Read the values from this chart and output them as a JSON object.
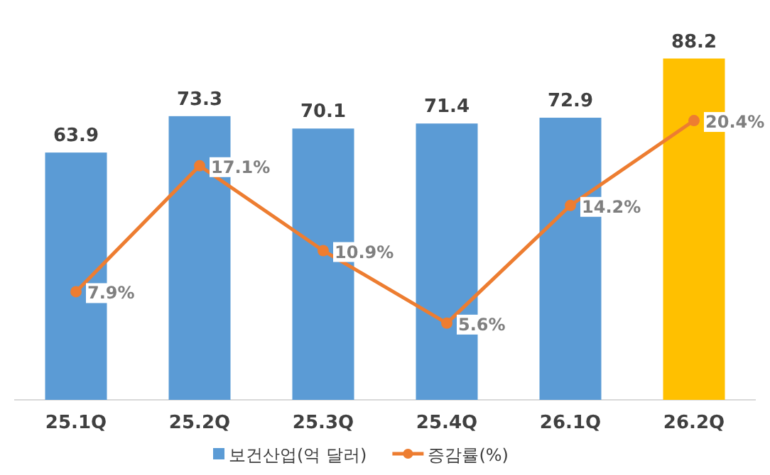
{
  "chart_data": {
    "type": "bar",
    "categories": [
      "25.1Q",
      "25.2Q",
      "25.3Q",
      "25.4Q",
      "26.1Q",
      "26.2Q"
    ],
    "series": [
      {
        "name": "보건산업(억 달러)",
        "colors": [
          "#5b9bd5",
          "#5b9bd5",
          "#5b9bd5",
          "#5b9bd5",
          "#5b9bd5",
          "#ffc000"
        ],
        "color": "#5b9bd5",
        "values": [
          63.9,
          73.3,
          70.1,
          71.4,
          72.9,
          88.2
        ],
        "value_labels": [
          "63.9",
          "73.3",
          "70.1",
          "71.4",
          "72.9",
          "88.2"
        ]
      },
      {
        "name": "증감률(%)",
        "type": "line",
        "axis": "y2",
        "color": "#ed7d31",
        "marker": "circle",
        "values": [
          7.9,
          17.1,
          10.9,
          5.6,
          14.2,
          20.4
        ],
        "value_labels": [
          "7.9%",
          "17.1%",
          "10.9%",
          "5.6%",
          "14.2%",
          "20.4%"
        ]
      }
    ],
    "tick_labels": "x",
    "legend": "bottom"
  }
}
